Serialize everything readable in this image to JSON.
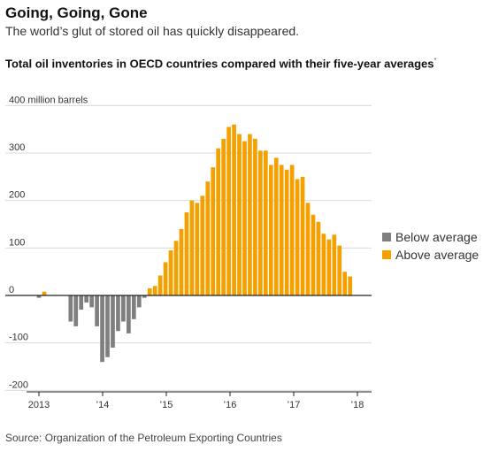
{
  "header": {
    "title": "Going, Going, Gone",
    "subtitle": "The world’s glut of stored oil has quickly disappeared."
  },
  "chart_title": "Total oil inventories in OECD countries compared with their five-year averages",
  "chart_title_mark": "*",
  "source": "Source: Organization of the Petroleum Exporting Countries",
  "colors": {
    "below": "#7f7f7f",
    "above": "#f4a100",
    "grid": "#d9d9d9",
    "axis": "#222222"
  },
  "chart_data": {
    "type": "bar",
    "ylabel": "400 million barrels",
    "ylim": [
      -200,
      400
    ],
    "yticks": [
      -200,
      -100,
      0,
      100,
      200,
      300
    ],
    "xticks": [
      "2013",
      "’14",
      "’15",
      "’16",
      "’17",
      "’18"
    ],
    "legend": [
      {
        "label": "Below average",
        "color": "#7f7f7f"
      },
      {
        "label": "Above average",
        "color": "#f4a100"
      }
    ],
    "series": [
      {
        "name": "Below average",
        "color": "#7f7f7f",
        "values": [
          -5,
          0,
          0,
          0,
          0,
          0,
          -55,
          -65,
          -30,
          -15,
          -25,
          -65,
          -140,
          -130,
          -110,
          -75,
          -55,
          -80,
          -50,
          -25,
          -5,
          0,
          0,
          0,
          0,
          0,
          0,
          0,
          0,
          0,
          0,
          0,
          0,
          0,
          0,
          0,
          0,
          0,
          0,
          0,
          0,
          0,
          0,
          0,
          0,
          0,
          0,
          0,
          0,
          0,
          0,
          0,
          0,
          0,
          0,
          0,
          0,
          0,
          0,
          0,
          0,
          0,
          0
        ]
      },
      {
        "name": "Above average",
        "color": "#f4a100",
        "values": [
          0,
          8,
          0,
          0,
          0,
          0,
          0,
          0,
          0,
          0,
          0,
          0,
          0,
          0,
          0,
          0,
          0,
          0,
          0,
          0,
          0,
          15,
          20,
          42,
          70,
          95,
          115,
          140,
          175,
          200,
          195,
          210,
          240,
          270,
          310,
          330,
          355,
          360,
          340,
          325,
          340,
          330,
          305,
          305,
          275,
          290,
          275,
          265,
          275,
          245,
          250,
          195,
          170,
          155,
          130,
          118,
          128,
          105,
          50,
          40,
          0,
          0,
          0
        ]
      }
    ]
  }
}
